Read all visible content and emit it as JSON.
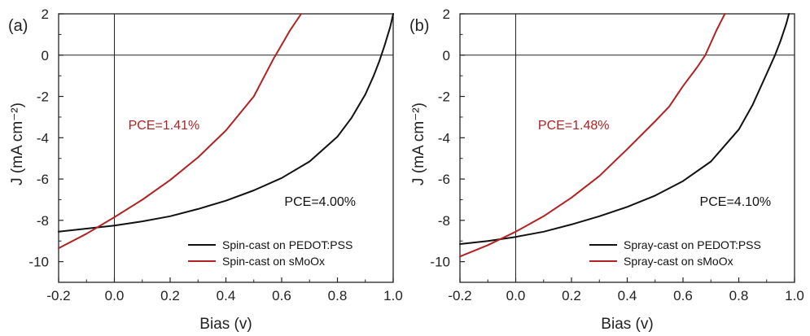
{
  "colors": {
    "black_series": "#111111",
    "red_series": "#b22222",
    "axis": "#222222"
  },
  "chart_data": [
    {
      "type": "line",
      "panel_label": "(a)",
      "xlabel": "Bias (v)",
      "ylabel": "J (mA cm⁻²)",
      "xlim": [
        -0.2,
        1.0
      ],
      "ylim": [
        -11,
        2
      ],
      "xticks": [
        "-0.2",
        "0.0",
        "0.2",
        "0.4",
        "0.6",
        "0.8",
        "1.0"
      ],
      "yticks": [
        "2",
        "0",
        "-2",
        "-4",
        "-6",
        "-8",
        "-10"
      ],
      "legend_position": "bottom-right",
      "annotations": [
        {
          "text": "PCE=1.41%",
          "color": "#b22222",
          "x": 0.05,
          "y": -3.6
        },
        {
          "text": "PCE=4.00%",
          "color": "#111111",
          "x": 0.61,
          "y": -7.3
        }
      ],
      "series": [
        {
          "name": "Spin-cast on PEDOT:PSS",
          "color": "#111111",
          "x": [
            -0.2,
            -0.1,
            0.0,
            0.1,
            0.2,
            0.3,
            0.4,
            0.5,
            0.6,
            0.7,
            0.8,
            0.85,
            0.9,
            0.93,
            0.95,
            0.97,
            0.99,
            1.0
          ],
          "y": [
            -8.55,
            -8.4,
            -8.25,
            -8.05,
            -7.8,
            -7.45,
            -7.05,
            -6.55,
            -5.95,
            -5.15,
            -3.95,
            -3.05,
            -1.9,
            -1.0,
            -0.3,
            0.5,
            1.4,
            2.0
          ]
        },
        {
          "name": "Spin-cast on sMoOx",
          "color": "#b22222",
          "x": [
            -0.2,
            -0.1,
            0.0,
            0.1,
            0.2,
            0.3,
            0.4,
            0.5,
            0.57,
            0.6,
            0.63,
            0.67
          ],
          "y": [
            -9.35,
            -8.65,
            -7.85,
            -7.0,
            -6.05,
            -4.95,
            -3.65,
            -2.0,
            -0.2,
            0.5,
            1.2,
            2.0
          ]
        }
      ]
    },
    {
      "type": "line",
      "panel_label": "(b)",
      "xlabel": "Bias (v)",
      "ylabel": "J (mA cm⁻²)",
      "xlim": [
        -0.2,
        1.0
      ],
      "ylim": [
        -11,
        2
      ],
      "xticks": [
        "-0.2",
        "0.0",
        "0.2",
        "0.4",
        "0.6",
        "0.8",
        "1.0"
      ],
      "yticks": [
        "2",
        "0",
        "-2",
        "-4",
        "-6",
        "-8",
        "-10"
      ],
      "legend_position": "bottom-right",
      "annotations": [
        {
          "text": "PCE=1.48%",
          "color": "#b22222",
          "x": 0.08,
          "y": -3.6
        },
        {
          "text": "PCE=4.10%",
          "color": "#111111",
          "x": 0.66,
          "y": -7.3
        }
      ],
      "series": [
        {
          "name": "Spray-cast on PEDOT:PSS",
          "color": "#111111",
          "x": [
            -0.2,
            -0.1,
            0.0,
            0.1,
            0.2,
            0.3,
            0.4,
            0.5,
            0.6,
            0.7,
            0.8,
            0.85,
            0.9,
            0.93,
            0.95,
            0.97,
            0.98
          ],
          "y": [
            -9.15,
            -9.0,
            -8.8,
            -8.55,
            -8.2,
            -7.8,
            -7.35,
            -6.8,
            -6.1,
            -5.15,
            -3.6,
            -2.4,
            -0.9,
            0.0,
            0.7,
            1.5,
            2.0
          ]
        },
        {
          "name": "Spray-cast on sMoOx",
          "color": "#b22222",
          "x": [
            -0.2,
            -0.1,
            0.0,
            0.1,
            0.2,
            0.3,
            0.4,
            0.5,
            0.55,
            0.6,
            0.65,
            0.68,
            0.7,
            0.72,
            0.75
          ],
          "y": [
            -9.75,
            -9.2,
            -8.55,
            -7.8,
            -6.9,
            -5.85,
            -4.55,
            -3.2,
            -2.5,
            -1.5,
            -0.6,
            0.0,
            0.6,
            1.2,
            2.0
          ]
        }
      ]
    }
  ]
}
